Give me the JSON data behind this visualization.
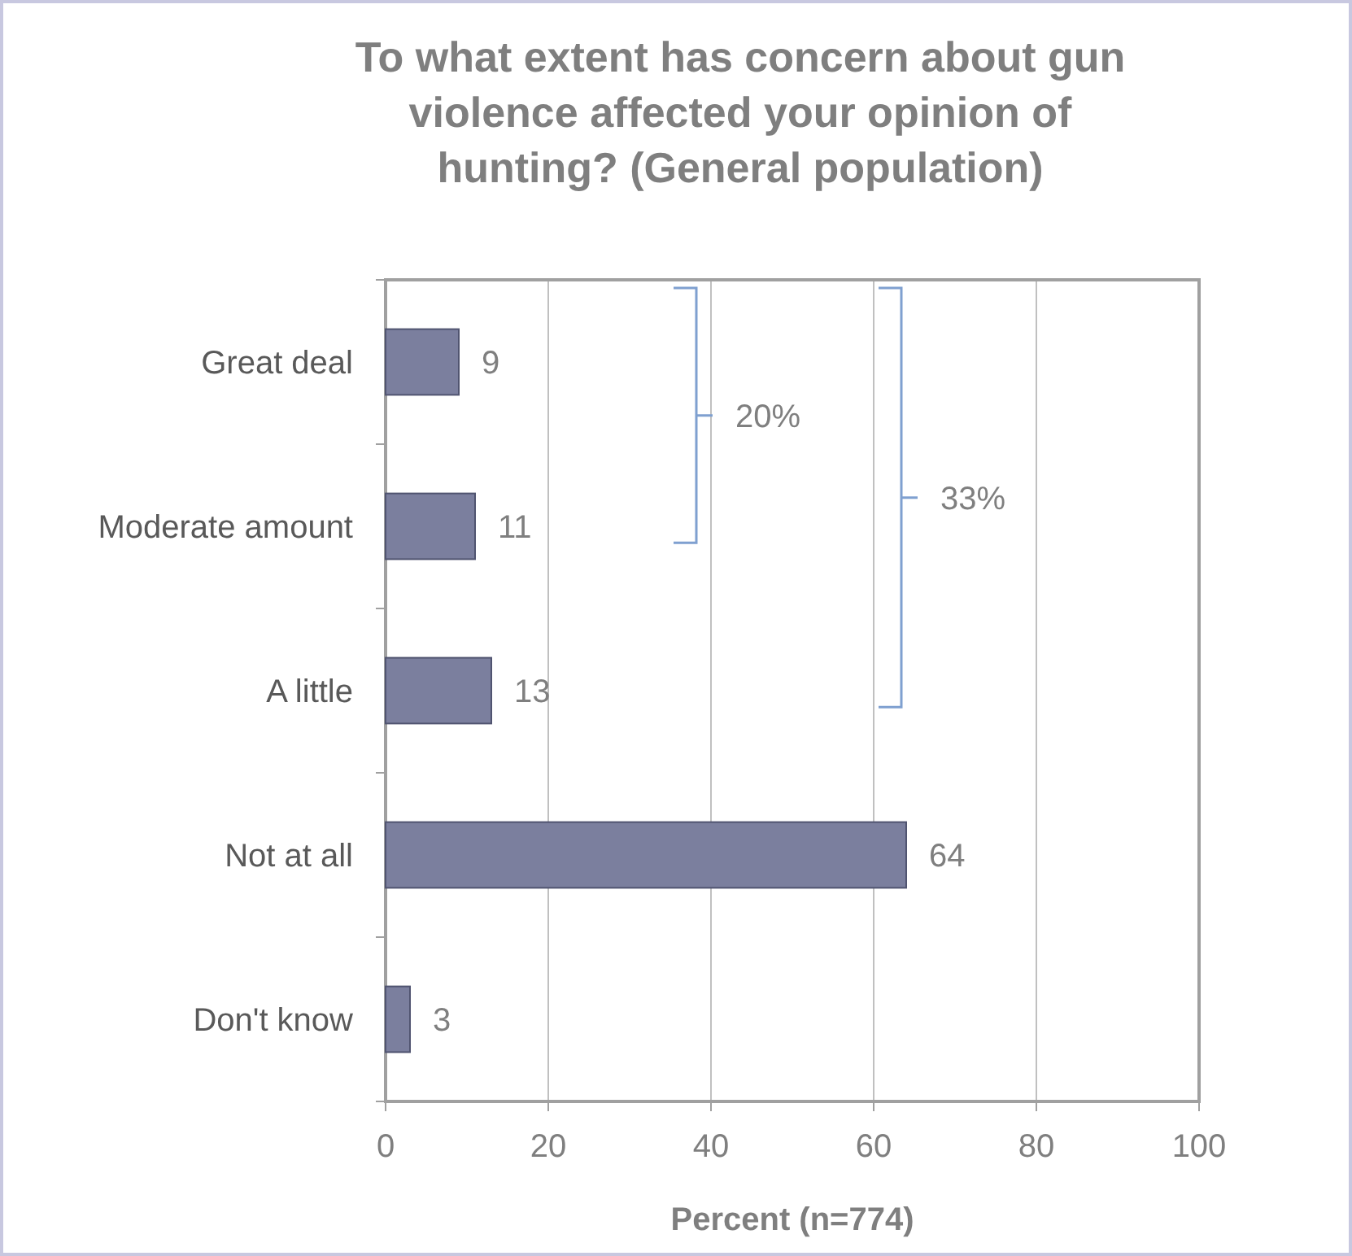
{
  "chart_data": {
    "type": "bar",
    "orientation": "horizontal",
    "title": "To what extent has concern about gun violence affected your opinion of hunting? (General population)",
    "xlabel": "Percent (n=774)",
    "categories": [
      "Great deal",
      "Moderate amount",
      "A little",
      "Not at all",
      "Don't know"
    ],
    "values": [
      9,
      11,
      13,
      64,
      3
    ],
    "color": "#7b7f9e",
    "xlim": [
      0,
      100
    ],
    "xticks": [
      0,
      20,
      40,
      60,
      80,
      100
    ],
    "grid": "x",
    "data_labels": true,
    "annotations": [
      "20%",
      "33%"
    ]
  }
}
